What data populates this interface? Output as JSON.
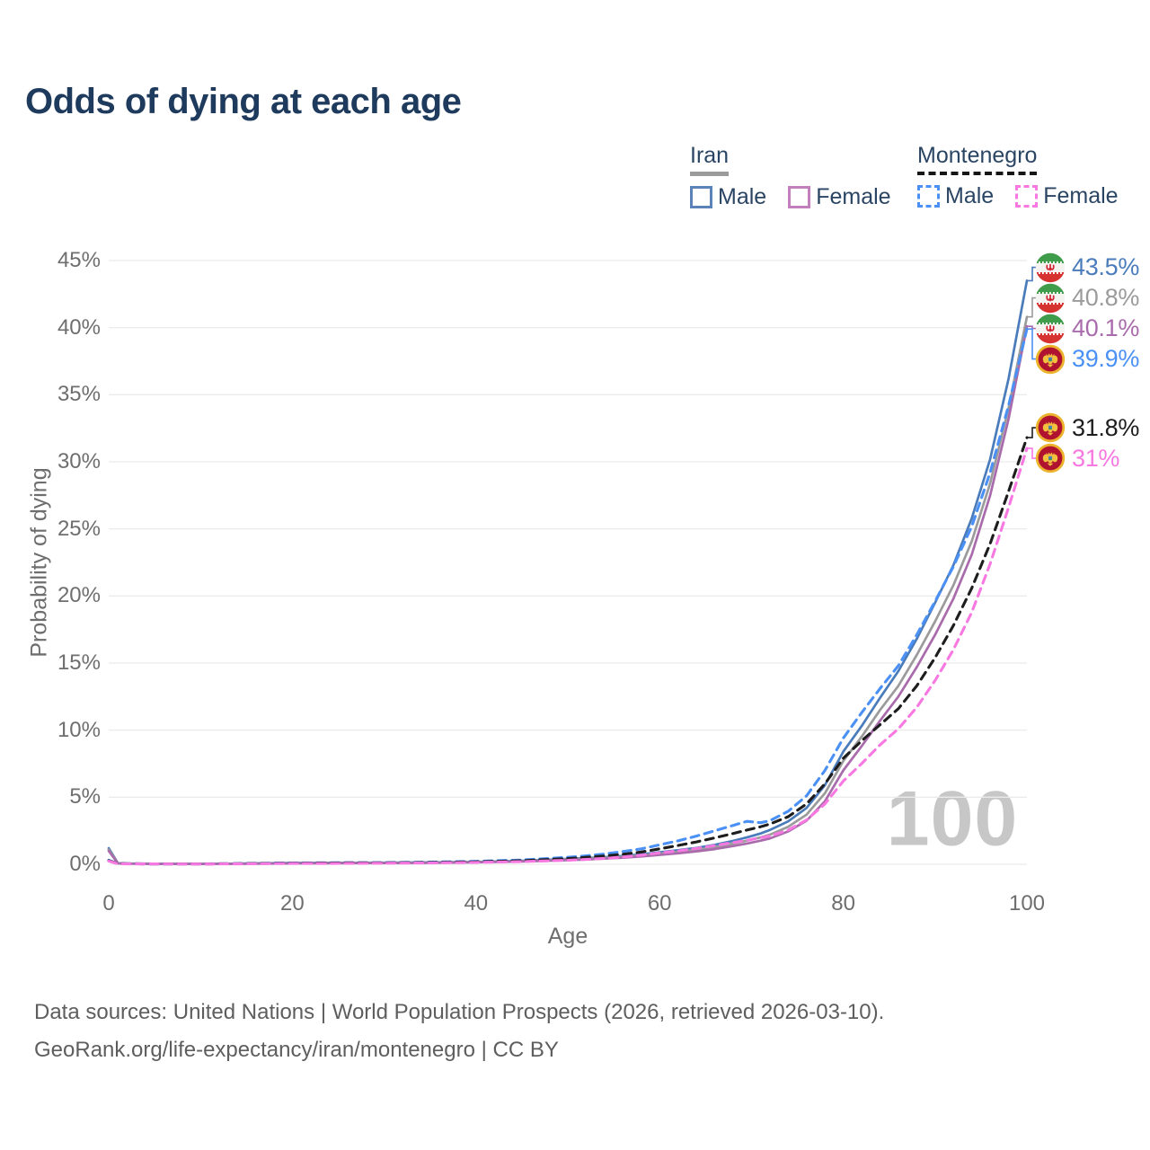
{
  "title": "Odds of dying at each age",
  "watermark": "100",
  "legend": {
    "groups": [
      {
        "label": "Iran",
        "line": {
          "style": "solid",
          "color": "#9b9b9b"
        },
        "items": [
          {
            "label": "Male",
            "color": "#5b83b8",
            "line_style": "solid"
          },
          {
            "label": "Female",
            "color": "#c17fbc",
            "line_style": "solid"
          }
        ]
      },
      {
        "label": "Montenegro",
        "line": {
          "style": "dashed",
          "color": "#161616"
        },
        "items": [
          {
            "label": "Male",
            "color": "#4a90f5",
            "line_style": "dashed"
          },
          {
            "label": "Female",
            "color": "#f878e2",
            "line_style": "dashed"
          }
        ]
      }
    ]
  },
  "footer": {
    "line1": "Data sources: United Nations | World Population Prospects (2026, retrieved 2026-03-10).",
    "line2": "GeoRank.org/life-expectancy/iran/montenegro | CC BY"
  },
  "chart_data": {
    "type": "line",
    "title": "Odds of dying at each age",
    "xlabel": "Age",
    "ylabel": "Probability of dying",
    "xlim": [
      0,
      100
    ],
    "ylim": [
      0,
      45
    ],
    "grid": "horizontal",
    "x_ticks": [
      0,
      20,
      40,
      60,
      80,
      100
    ],
    "y_ticks": [
      {
        "value": 0,
        "label": "0%"
      },
      {
        "value": 5,
        "label": "5%"
      },
      {
        "value": 10,
        "label": "10%"
      },
      {
        "value": 15,
        "label": "15%"
      },
      {
        "value": 20,
        "label": "20%"
      },
      {
        "value": 25,
        "label": "25%"
      },
      {
        "value": 30,
        "label": "30%"
      },
      {
        "value": 35,
        "label": "35%"
      },
      {
        "value": 40,
        "label": "40%"
      },
      {
        "value": 45,
        "label": "45%"
      }
    ],
    "x": [
      0,
      1,
      2,
      5,
      10,
      15,
      20,
      25,
      30,
      35,
      40,
      45,
      50,
      52,
      54,
      56,
      58,
      60,
      62,
      64,
      66,
      68,
      69.5,
      71,
      72,
      74,
      76,
      78,
      80,
      82,
      84,
      86,
      88,
      90,
      92,
      94,
      96,
      98,
      100
    ],
    "series": [
      {
        "id": "iran-male",
        "name": "Iran — Male",
        "country": "Iran",
        "sex": "Male",
        "color": "#4a7cbb",
        "line_style": "solid",
        "flag": "iran",
        "end_label": "43.5%",
        "values": [
          1.2,
          0.09,
          0.06,
          0.04,
          0.03,
          0.06,
          0.1,
          0.11,
          0.12,
          0.14,
          0.18,
          0.26,
          0.4,
          0.46,
          0.53,
          0.62,
          0.74,
          0.9,
          1.05,
          1.22,
          1.45,
          1.75,
          2.0,
          2.3,
          2.55,
          3.2,
          4.2,
          5.9,
          8.4,
          10.3,
          12.4,
          14.4,
          16.8,
          19.5,
          22.3,
          25.8,
          30.2,
          36.2,
          43.5
        ]
      },
      {
        "id": "iran-both",
        "name": "Iran — Both sexes",
        "country": "Iran",
        "sex": "Both",
        "color": "#9b9b9b",
        "line_style": "solid",
        "flag": "iran",
        "end_label": "40.8%",
        "values": [
          1.1,
          0.08,
          0.055,
          0.035,
          0.028,
          0.05,
          0.09,
          0.1,
          0.11,
          0.13,
          0.165,
          0.235,
          0.36,
          0.415,
          0.48,
          0.555,
          0.66,
          0.8,
          0.93,
          1.08,
          1.28,
          1.54,
          1.76,
          2.0,
          2.2,
          2.8,
          3.7,
          5.3,
          7.7,
          9.5,
          11.5,
          13.3,
          15.6,
          18.1,
          20.8,
          24.1,
          28.4,
          34.0,
          40.8
        ]
      },
      {
        "id": "iran-female",
        "name": "Iran — Female",
        "country": "Iran",
        "sex": "Female",
        "color": "#a96bac",
        "line_style": "solid",
        "flag": "iran",
        "end_label": "40.1%",
        "values": [
          1.0,
          0.07,
          0.05,
          0.03,
          0.025,
          0.04,
          0.07,
          0.08,
          0.09,
          0.11,
          0.15,
          0.21,
          0.31,
          0.36,
          0.42,
          0.49,
          0.58,
          0.7,
          0.82,
          0.96,
          1.13,
          1.36,
          1.55,
          1.76,
          1.92,
          2.45,
          3.25,
          4.7,
          7.0,
          8.8,
          10.7,
          12.5,
          14.7,
          17.1,
          19.8,
          23.1,
          27.5,
          33.2,
          40.1
        ]
      },
      {
        "id": "montenegro-male",
        "name": "Montenegro — Male",
        "country": "Montenegro",
        "sex": "Male",
        "color": "#4a90f5",
        "line_style": "dashed",
        "flag": "montenegro",
        "end_label": "39.9%",
        "values": [
          0.3,
          0.05,
          0.04,
          0.03,
          0.03,
          0.06,
          0.1,
          0.12,
          0.13,
          0.16,
          0.22,
          0.32,
          0.52,
          0.63,
          0.77,
          0.95,
          1.15,
          1.45,
          1.75,
          2.1,
          2.5,
          2.9,
          3.2,
          3.1,
          3.25,
          3.95,
          5.1,
          7.0,
          9.4,
          11.3,
          13.1,
          14.8,
          17.1,
          19.6,
          22.2,
          25.2,
          29.2,
          34.2,
          39.9
        ]
      },
      {
        "id": "montenegro-both",
        "name": "Montenegro — Both sexes",
        "country": "Montenegro",
        "sex": "Both",
        "color": "#1d1d1d",
        "line_style": "dashed",
        "flag": "montenegro",
        "end_label": "31.8%",
        "values": [
          0.27,
          0.05,
          0.04,
          0.03,
          0.028,
          0.05,
          0.09,
          0.1,
          0.11,
          0.135,
          0.18,
          0.27,
          0.43,
          0.52,
          0.62,
          0.75,
          0.92,
          1.15,
          1.4,
          1.67,
          1.97,
          2.3,
          2.55,
          2.8,
          3.0,
          3.55,
          4.5,
          6.0,
          7.9,
          9.2,
          10.4,
          11.6,
          13.3,
          15.4,
          17.8,
          20.6,
          23.9,
          27.8,
          31.8
        ]
      },
      {
        "id": "montenegro-female",
        "name": "Montenegro — Female",
        "country": "Montenegro",
        "sex": "Female",
        "color": "#f878e2",
        "line_style": "dashed",
        "flag": "montenegro",
        "end_label": "31%",
        "values": [
          0.24,
          0.04,
          0.03,
          0.025,
          0.02,
          0.035,
          0.06,
          0.07,
          0.08,
          0.1,
          0.14,
          0.2,
          0.3,
          0.36,
          0.44,
          0.54,
          0.68,
          0.85,
          1.0,
          1.18,
          1.4,
          1.62,
          1.78,
          1.98,
          2.1,
          2.55,
          3.3,
          4.5,
          6.2,
          7.5,
          8.9,
          10.1,
          11.7,
          13.7,
          16.0,
          18.8,
          22.4,
          26.6,
          31.0
        ]
      }
    ]
  }
}
